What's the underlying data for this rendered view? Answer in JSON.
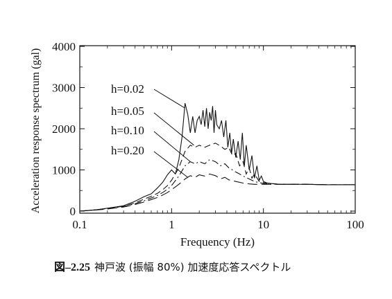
{
  "caption": {
    "number": "図–2.25",
    "text": "神戸波 (振幅 80%) 加速度応答スペクトル"
  },
  "chart_data": {
    "type": "line",
    "xlabel": "Frequency (Hz)",
    "ylabel": "Acceleration response spectrum (gal)",
    "xscale": "log",
    "xlim": [
      0.1,
      100
    ],
    "ylim": [
      0,
      4000
    ],
    "xticks": [
      0.1,
      1,
      10,
      100
    ],
    "xtick_labels": [
      "0.1",
      "1",
      "10",
      "100"
    ],
    "yticks": [
      0,
      1000,
      2000,
      3000,
      4000
    ],
    "ytick_labels": [
      "0",
      "1000",
      "2000",
      "3000",
      "4000"
    ],
    "grid": false,
    "legend": "inline labels with leader lines",
    "series": [
      {
        "name": "h=0.02",
        "style": "solid",
        "x": [
          0.1,
          0.15,
          0.2,
          0.3,
          0.4,
          0.5,
          0.6,
          0.7,
          0.8,
          0.9,
          1.0,
          1.1,
          1.2,
          1.3,
          1.4,
          1.5,
          1.6,
          1.7,
          1.8,
          1.9,
          2.0,
          2.1,
          2.2,
          2.3,
          2.4,
          2.5,
          2.6,
          2.7,
          2.8,
          2.9,
          3.0,
          3.1,
          3.3,
          3.5,
          3.7,
          3.9,
          4.1,
          4.3,
          4.5,
          4.7,
          5.0,
          5.3,
          5.6,
          5.9,
          6.2,
          6.5,
          7.0,
          7.5,
          8.0,
          8.5,
          9.0,
          9.5,
          10,
          11,
          12,
          15,
          20,
          30,
          50,
          100
        ],
        "y": [
          0,
          30,
          70,
          130,
          240,
          350,
          420,
          560,
          700,
          880,
          1000,
          900,
          1250,
          1800,
          2620,
          2350,
          1900,
          2300,
          1900,
          2200,
          2300,
          2100,
          2450,
          2050,
          2500,
          2000,
          2400,
          2200,
          2550,
          1900,
          2450,
          2100,
          2000,
          2200,
          1800,
          2200,
          1550,
          1900,
          1400,
          1750,
          1300,
          1700,
          1250,
          1900,
          1100,
          1600,
          1000,
          1350,
          800,
          1100,
          750,
          850,
          720,
          680,
          670,
          650,
          650,
          650,
          640,
          640
        ]
      },
      {
        "name": "h=0.05",
        "style": "dash",
        "x": [
          0.1,
          0.15,
          0.2,
          0.3,
          0.4,
          0.5,
          0.6,
          0.7,
          0.8,
          0.9,
          1.0,
          1.2,
          1.4,
          1.6,
          1.8,
          2.0,
          2.3,
          2.6,
          3.0,
          3.4,
          3.8,
          4.2,
          4.6,
          5.0,
          5.5,
          6.0,
          6.5,
          7.0,
          7.5,
          8.0,
          9.0,
          10,
          12,
          15,
          20,
          30,
          50,
          100
        ],
        "y": [
          0,
          30,
          65,
          120,
          200,
          290,
          360,
          430,
          520,
          620,
          750,
          1050,
          1450,
          1600,
          1550,
          1600,
          1550,
          1600,
          1650,
          1580,
          1500,
          1550,
          1350,
          1400,
          1100,
          1200,
          900,
          1050,
          800,
          900,
          720,
          690,
          670,
          650,
          650,
          650,
          640,
          640
        ]
      },
      {
        "name": "h=0.10",
        "style": "dashdot",
        "x": [
          0.1,
          0.15,
          0.2,
          0.3,
          0.4,
          0.5,
          0.6,
          0.7,
          0.8,
          0.9,
          1.0,
          1.2,
          1.4,
          1.6,
          1.8,
          2.0,
          2.3,
          2.6,
          3.0,
          3.4,
          3.8,
          4.2,
          4.6,
          5.0,
          5.5,
          6.0,
          7.0,
          8.0,
          9.0,
          10,
          12,
          15,
          20,
          30,
          50,
          100
        ],
        "y": [
          0,
          30,
          60,
          110,
          180,
          250,
          320,
          380,
          450,
          530,
          620,
          850,
          1100,
          1200,
          1150,
          1200,
          1150,
          1250,
          1200,
          1100,
          1150,
          1050,
          1000,
          950,
          900,
          850,
          780,
          720,
          690,
          670,
          660,
          650,
          650,
          650,
          640,
          640
        ]
      },
      {
        "name": "h=0.20",
        "style": "longdash",
        "x": [
          0.1,
          0.15,
          0.2,
          0.3,
          0.4,
          0.5,
          0.6,
          0.7,
          0.8,
          0.9,
          1.0,
          1.2,
          1.4,
          1.6,
          1.8,
          2.0,
          2.3,
          2.6,
          3.0,
          3.4,
          3.8,
          4.2,
          4.6,
          5.0,
          6.0,
          7.0,
          8.0,
          10,
          12,
          15,
          20,
          30,
          50,
          100
        ],
        "y": [
          0,
          25,
          50,
          100,
          160,
          220,
          280,
          330,
          390,
          450,
          520,
          650,
          780,
          860,
          820,
          880,
          850,
          900,
          860,
          780,
          820,
          760,
          740,
          720,
          680,
          660,
          650,
          650,
          650,
          650,
          650,
          650,
          640,
          640
        ]
      }
    ],
    "annotations": [
      {
        "text": "h=0.02",
        "points_to": "h=0.02 near 1.4 Hz"
      },
      {
        "text": "h=0.05",
        "points_to": "h=0.05 near 1.7 Hz"
      },
      {
        "text": "h=0.10",
        "points_to": "h=0.10 near 1.6 Hz"
      },
      {
        "text": "h=0.20",
        "points_to": "h=0.20 near 1.5 Hz"
      }
    ]
  }
}
